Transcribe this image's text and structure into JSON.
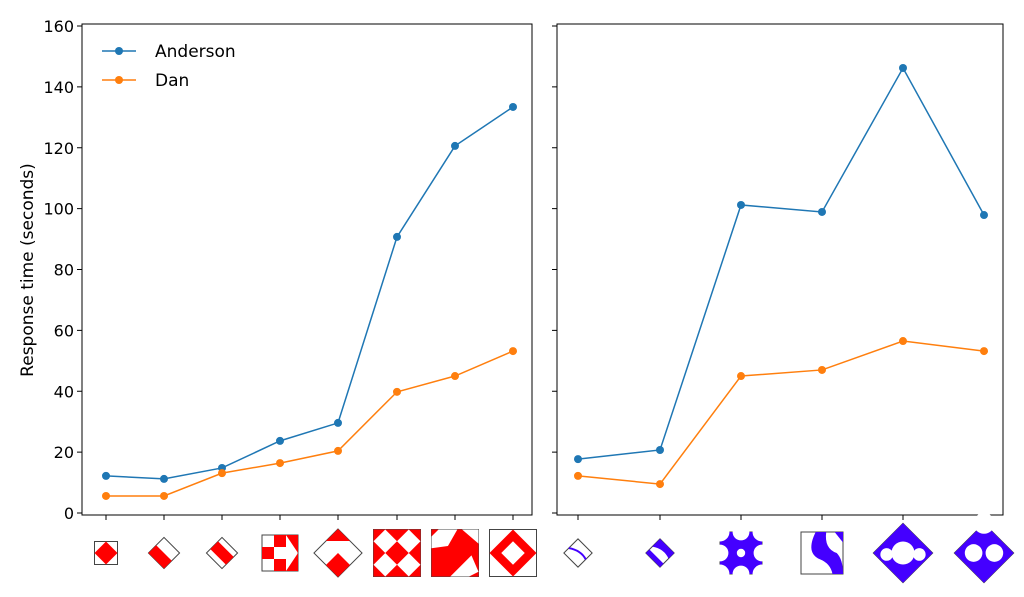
{
  "chart_data": [
    {
      "type": "line",
      "ylabel": "Response time (seconds)",
      "ylim": [
        0,
        160
      ],
      "yticks": [
        0,
        20,
        40,
        60,
        80,
        100,
        120,
        140,
        160
      ],
      "x": [
        1,
        2,
        3,
        4,
        5,
        6,
        7,
        8
      ],
      "x_tick_labels": "pattern images (red)",
      "legend": "top-left",
      "series": [
        {
          "name": "Anderson",
          "color": "#1f77b4",
          "values": [
            12.2,
            11.2,
            14.8,
            23.7,
            29.6,
            90.7,
            120.6,
            133.4
          ]
        },
        {
          "name": "Dan",
          "color": "#ff7f0e",
          "values": [
            5.6,
            5.6,
            13.1,
            16.4,
            20.4,
            39.8,
            45.0,
            53.2
          ]
        }
      ]
    },
    {
      "type": "line",
      "ylim": [
        0,
        160
      ],
      "x": [
        1,
        2,
        3,
        4,
        5,
        6
      ],
      "x_tick_labels": "pattern images (blue)",
      "series": [
        {
          "name": "Anderson",
          "color": "#1f77b4",
          "values": [
            17.7,
            20.7,
            101.2,
            98.9,
            146.2,
            97.9
          ]
        },
        {
          "name": "Dan",
          "color": "#ff7f0e",
          "values": [
            12.2,
            9.5,
            45.0,
            47.0,
            56.5,
            53.2
          ]
        }
      ]
    }
  ],
  "colors": {
    "pattern_red": "#ff0000",
    "pattern_blue": "#4400ff"
  }
}
